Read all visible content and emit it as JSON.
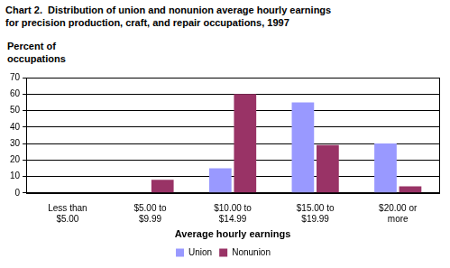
{
  "chart_data": {
    "type": "bar",
    "title": [
      "Chart 2.  Distribution of union and nonunion average hourly earnings",
      "for precision production, craft, and repair occupations, 1997"
    ],
    "y_label": "Percent of occupations",
    "x_label": "Average hourly earnings",
    "categories": [
      "Less than $5.00",
      "$5.00 to $9.99",
      "$10.00 to $14.99",
      "$15.00 to $19.99",
      "$20.00 or more"
    ],
    "series": [
      {
        "name": "Union",
        "color": "#9999ff",
        "values": [
          0,
          0,
          15,
          55,
          30
        ]
      },
      {
        "name": "Nonunion",
        "color": "#993366",
        "values": [
          0,
          8,
          60,
          29,
          4
        ]
      }
    ],
    "ylim": [
      0,
      70
    ],
    "yticks": [
      0,
      10,
      20,
      30,
      40,
      50,
      60,
      70
    ],
    "grid": true,
    "legend": "bottom"
  }
}
